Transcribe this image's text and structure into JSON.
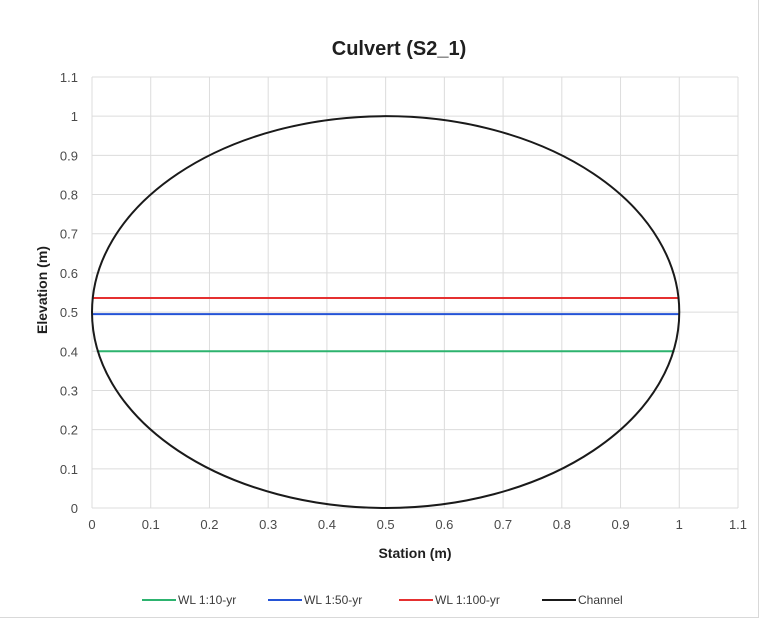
{
  "chart_data": {
    "type": "line",
    "title": "Culvert (S2_1)",
    "xlabel": "Station (m)",
    "ylabel": "Elevation (m)",
    "xlim": [
      0,
      1.1
    ],
    "ylim": [
      0,
      1.1
    ],
    "xticks": [
      0,
      0.1,
      0.2,
      0.3,
      0.4,
      0.5,
      0.6,
      0.7,
      0.8,
      0.9,
      1,
      1.1
    ],
    "yticks": [
      0,
      0.1,
      0.2,
      0.3,
      0.4,
      0.5,
      0.6,
      0.7,
      0.8,
      0.9,
      1,
      1.1
    ],
    "xtick_labels": [
      "0",
      "0.1",
      "0.2",
      "0.3",
      "0.4",
      "0.5",
      "0.6",
      "0.7",
      "0.8",
      "0.9",
      "1",
      "1.1"
    ],
    "ytick_labels": [
      "0",
      "0.1",
      "0.2",
      "0.3",
      "0.4",
      "0.5",
      "0.6",
      "0.7",
      "0.8",
      "0.9",
      "1",
      "1.1"
    ],
    "grid": true,
    "legend_position": "bottom",
    "series": [
      {
        "name": "WL 1:10-yr",
        "color": "#2db36f",
        "x": [
          0.0082,
          0.9918
        ],
        "y": [
          0.4,
          0.4
        ]
      },
      {
        "name": "WL 1:50-yr",
        "color": "#2453d6",
        "x": [
          0.0001,
          0.9999
        ],
        "y": [
          0.495,
          0.495
        ]
      },
      {
        "name": "WL 1:100-yr",
        "color": "#e53030",
        "x": [
          0.0007,
          0.9993
        ],
        "y": [
          0.536,
          0.536
        ]
      },
      {
        "name": "Channel",
        "color": "#1a1a1a",
        "shape": "ellipse",
        "center": [
          0.5,
          0.5
        ],
        "radius_x": 0.5,
        "radius_y": 0.5
      }
    ]
  }
}
